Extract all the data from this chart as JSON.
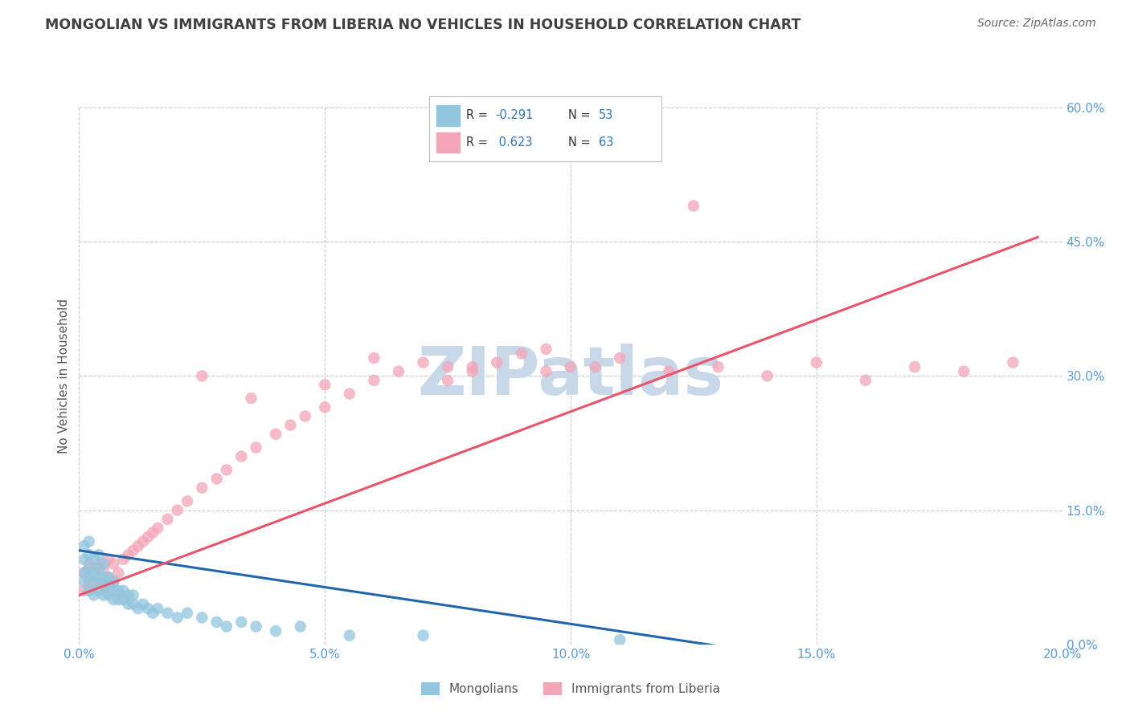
{
  "title": "MONGOLIAN VS IMMIGRANTS FROM LIBERIA NO VEHICLES IN HOUSEHOLD CORRELATION CHART",
  "source": "Source: ZipAtlas.com",
  "ylabel": "No Vehicles in Household",
  "blue_R": -0.291,
  "blue_N": 53,
  "pink_R": 0.623,
  "pink_N": 63,
  "blue_label": "Mongolians",
  "pink_label": "Immigrants from Liberia",
  "x_min": 0.0,
  "x_max": 0.2,
  "y_min": 0.0,
  "y_max": 0.6,
  "x_ticks": [
    0.0,
    0.05,
    0.1,
    0.15,
    0.2
  ],
  "x_tick_labels": [
    "0.0%",
    "5.0%",
    "10.0%",
    "15.0%",
    "20.0%"
  ],
  "y_ticks": [
    0.0,
    0.15,
    0.3,
    0.45,
    0.6
  ],
  "y_tick_labels": [
    "0.0%",
    "15.0%",
    "30.0%",
    "45.0%",
    "60.0%"
  ],
  "blue_color": "#92c5de",
  "blue_line_color": "#2166ac",
  "pink_color": "#f4a5b8",
  "pink_line_color": "#e8546a",
  "bg_color": "#ffffff",
  "grid_color": "#cccccc",
  "watermark": "ZIPatlas",
  "watermark_color": "#c8d8e8",
  "title_color": "#404040",
  "axis_label_color": "#5b9bd5",
  "legend_text_color": "#2e75b6",
  "blue_scatter_x": [
    0.001,
    0.001,
    0.001,
    0.001,
    0.002,
    0.002,
    0.002,
    0.002,
    0.002,
    0.003,
    0.003,
    0.003,
    0.003,
    0.004,
    0.004,
    0.004,
    0.004,
    0.005,
    0.005,
    0.005,
    0.005,
    0.006,
    0.006,
    0.006,
    0.007,
    0.007,
    0.007,
    0.008,
    0.008,
    0.009,
    0.009,
    0.01,
    0.01,
    0.011,
    0.011,
    0.012,
    0.013,
    0.014,
    0.015,
    0.016,
    0.018,
    0.02,
    0.022,
    0.025,
    0.028,
    0.03,
    0.033,
    0.036,
    0.04,
    0.045,
    0.055,
    0.07,
    0.11
  ],
  "blue_scatter_y": [
    0.07,
    0.08,
    0.095,
    0.11,
    0.06,
    0.075,
    0.085,
    0.1,
    0.115,
    0.055,
    0.07,
    0.08,
    0.095,
    0.06,
    0.075,
    0.085,
    0.1,
    0.055,
    0.065,
    0.075,
    0.09,
    0.055,
    0.065,
    0.075,
    0.05,
    0.06,
    0.07,
    0.05,
    0.06,
    0.05,
    0.06,
    0.045,
    0.055,
    0.045,
    0.055,
    0.04,
    0.045,
    0.04,
    0.035,
    0.04,
    0.035,
    0.03,
    0.035,
    0.03,
    0.025,
    0.02,
    0.025,
    0.02,
    0.015,
    0.02,
    0.01,
    0.01,
    0.005
  ],
  "pink_scatter_x": [
    0.001,
    0.001,
    0.002,
    0.002,
    0.003,
    0.003,
    0.004,
    0.004,
    0.005,
    0.005,
    0.006,
    0.006,
    0.007,
    0.007,
    0.008,
    0.009,
    0.01,
    0.011,
    0.012,
    0.013,
    0.014,
    0.015,
    0.016,
    0.018,
    0.02,
    0.022,
    0.025,
    0.028,
    0.03,
    0.033,
    0.036,
    0.04,
    0.043,
    0.046,
    0.05,
    0.055,
    0.06,
    0.065,
    0.07,
    0.075,
    0.08,
    0.085,
    0.09,
    0.095,
    0.1,
    0.105,
    0.11,
    0.12,
    0.13,
    0.14,
    0.15,
    0.16,
    0.17,
    0.18,
    0.19,
    0.025,
    0.035,
    0.05,
    0.075,
    0.095,
    0.06,
    0.08,
    0.125
  ],
  "pink_scatter_y": [
    0.06,
    0.08,
    0.07,
    0.09,
    0.065,
    0.085,
    0.07,
    0.09,
    0.065,
    0.085,
    0.075,
    0.095,
    0.07,
    0.09,
    0.08,
    0.095,
    0.1,
    0.105,
    0.11,
    0.115,
    0.12,
    0.125,
    0.13,
    0.14,
    0.15,
    0.16,
    0.175,
    0.185,
    0.195,
    0.21,
    0.22,
    0.235,
    0.245,
    0.255,
    0.265,
    0.28,
    0.295,
    0.305,
    0.315,
    0.295,
    0.305,
    0.315,
    0.325,
    0.33,
    0.31,
    0.31,
    0.32,
    0.305,
    0.31,
    0.3,
    0.315,
    0.295,
    0.31,
    0.305,
    0.315,
    0.3,
    0.275,
    0.29,
    0.31,
    0.305,
    0.32,
    0.31,
    0.49
  ],
  "blue_trend_x": [
    0.0,
    0.14
  ],
  "blue_trend_y": [
    0.105,
    -0.01
  ],
  "pink_trend_x": [
    0.0,
    0.195
  ],
  "pink_trend_y": [
    0.055,
    0.455
  ]
}
